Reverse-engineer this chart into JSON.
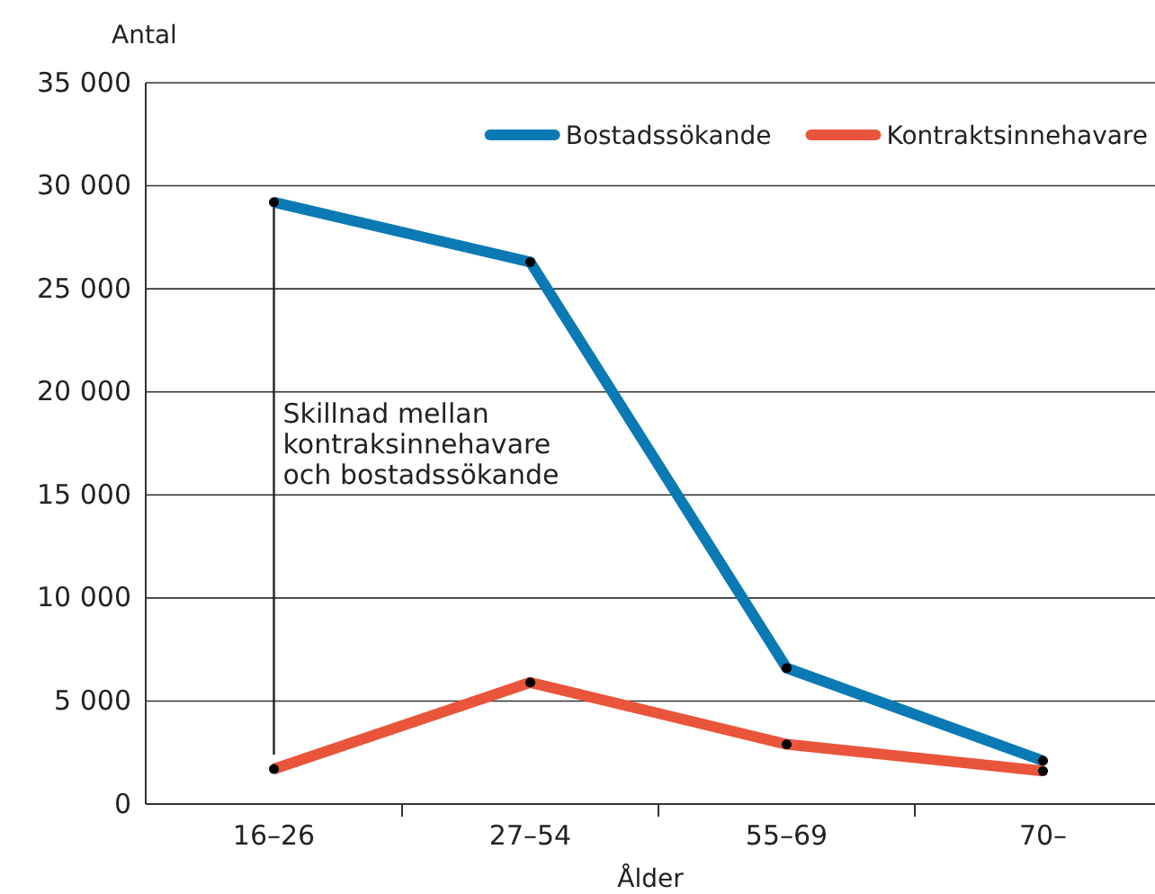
{
  "chart_data": {
    "type": "line",
    "ylabel": "Antal",
    "xlabel": "Ålder",
    "categories": [
      "16–26",
      "27–54",
      "55–69",
      "70–"
    ],
    "series": [
      {
        "name": "Bostadssökande",
        "color": "#0b7ab4",
        "values": [
          29200,
          26300,
          6600,
          2100
        ]
      },
      {
        "name": "Kontraktsinnehavare",
        "color": "#e9553b",
        "values": [
          1700,
          5900,
          2900,
          1600
        ]
      }
    ],
    "ylim": [
      0,
      35000
    ],
    "yticks": [
      {
        "value": 0,
        "label": "0"
      },
      {
        "value": 5000,
        "label": "5 000"
      },
      {
        "value": 10000,
        "label": "10 000"
      },
      {
        "value": 15000,
        "label": "15 000"
      },
      {
        "value": 20000,
        "label": "20 000"
      },
      {
        "value": 25000,
        "label": "25 000"
      },
      {
        "value": 30000,
        "label": "30 000"
      },
      {
        "value": 35000,
        "label": "35 000"
      }
    ],
    "ref_lines": [
      {
        "axis": "x",
        "value": "16–26",
        "color": "#222222"
      }
    ],
    "grid": "y",
    "legend": "top right",
    "marker": "circle",
    "line_style": "solid",
    "annotations": [
      "Skillnad mellan\nkontraksinnehavare\noch bostadssökande"
    ]
  }
}
